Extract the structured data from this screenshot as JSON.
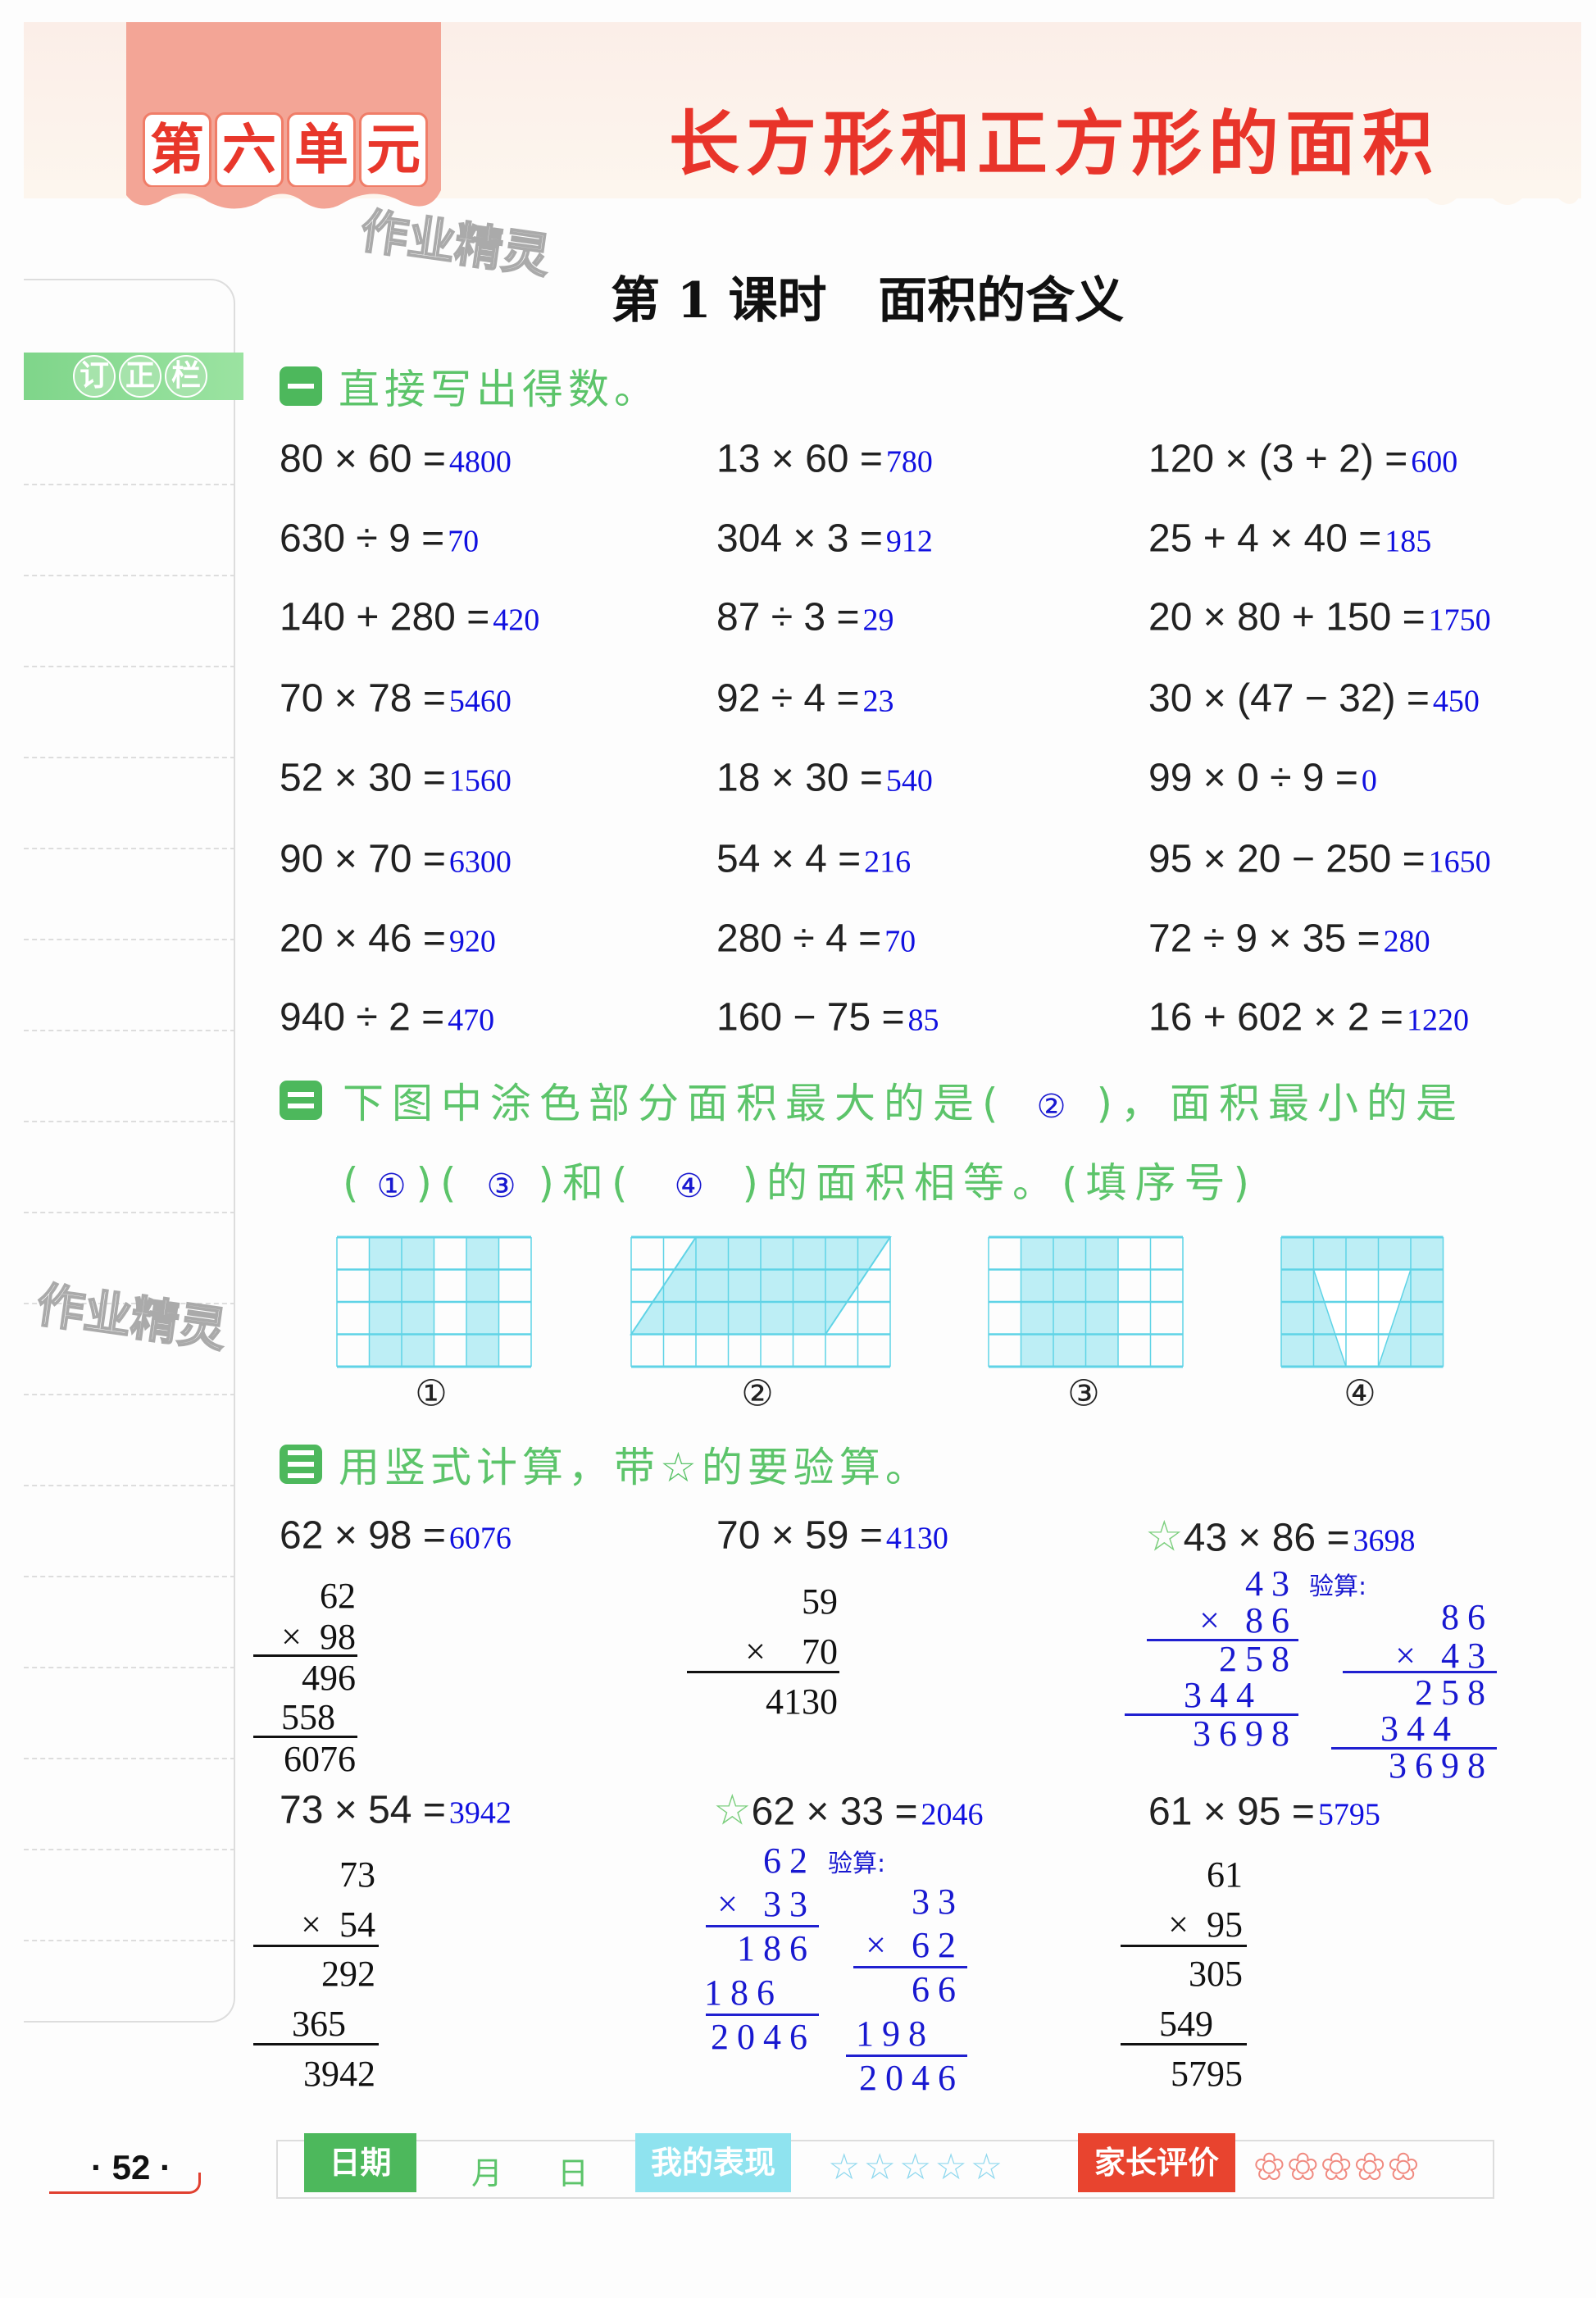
{
  "header": {
    "unit_chars": [
      "第",
      "六",
      "单",
      "元"
    ],
    "chapter_title": "长方形和正方形的面积",
    "lesson_title": "第 1 课时   面积的含义",
    "watermark": "作业精灵"
  },
  "sidebar": {
    "label_chars": [
      "订",
      "正",
      "栏"
    ]
  },
  "section1": {
    "number": "一",
    "title": "直接写出得数。",
    "columns": [
      [
        {
          "q": "80 × 60 =",
          "a": "4800"
        },
        {
          "q": "630 ÷ 9 =",
          "a": "70"
        },
        {
          "q": "140 + 280 =",
          "a": "420"
        },
        {
          "q": "70 × 78 =",
          "a": "5460"
        },
        {
          "q": "52 × 30 =",
          "a": "1560"
        },
        {
          "q": "90 × 70 =",
          "a": "6300"
        },
        {
          "q": "20 × 46 =",
          "a": "920"
        },
        {
          "q": "940 ÷ 2 =",
          "a": "470"
        }
      ],
      [
        {
          "q": "13 × 60 =",
          "a": "780"
        },
        {
          "q": "304 × 3 =",
          "a": "912"
        },
        {
          "q": "87 ÷ 3 =",
          "a": "29"
        },
        {
          "q": "92 ÷ 4 =",
          "a": "23"
        },
        {
          "q": "18 × 30 =",
          "a": "540"
        },
        {
          "q": "54 × 4 =",
          "a": "216"
        },
        {
          "q": "280 ÷ 4 =",
          "a": "70"
        },
        {
          "q": "160 − 75 =",
          "a": "85"
        }
      ],
      [
        {
          "q": "120 × (3 + 2) =",
          "a": "600"
        },
        {
          "q": "25 + 4 × 40 =",
          "a": "185"
        },
        {
          "q": "20 × 80 + 150 =",
          "a": "1750"
        },
        {
          "q": "30 × (47 − 32) =",
          "a": "450"
        },
        {
          "q": "99 × 0 ÷ 9 =",
          "a": "0"
        },
        {
          "q": "95 × 20 − 250 =",
          "a": "1650"
        },
        {
          "q": "72 ÷ 9 × 35 =",
          "a": "280"
        },
        {
          "q": "16 + 602 × 2 =",
          "a": "1220"
        }
      ]
    ]
  },
  "section2": {
    "number": "二",
    "line1_a": "下图中涂色部分面积最大的是(",
    "answer_largest": "②",
    "line1_b": ")，面积最小的是",
    "open1": "(",
    "answer_smallest": "①",
    "mid1": ")(",
    "answer_equal_1": "③",
    "mid2": ")和(",
    "answer_equal_2": "④",
    "line2_end": ")的面积相等。(填序号)",
    "figure_labels": [
      "①",
      "②",
      "③",
      "④"
    ],
    "shade_color": "#bdeef5",
    "grid_color": "#5fd3e6"
  },
  "section3": {
    "number": "三",
    "title": "用竖式计算，带☆的要验算。",
    "star": "☆",
    "check_label": "验算:",
    "problems": [
      {
        "q": "62 × 98 =",
        "a": "6076",
        "lines": [
          "62",
          "×  98",
          "496",
          "558",
          "6076"
        ]
      },
      {
        "q": "70 × 59 =",
        "a": "4130",
        "lines": [
          "59",
          "×    70",
          "4130"
        ]
      },
      {
        "q": "43 × 86 =",
        "a": "3698",
        "lines": [
          "43",
          "× 86",
          "258",
          "344",
          "3698"
        ],
        "check": [
          "86",
          "× 43",
          "258",
          "344",
          "3698"
        ]
      },
      {
        "q": "73 × 54 =",
        "a": "3942",
        "lines": [
          "73",
          "×  54",
          "292",
          "365",
          "3942"
        ]
      },
      {
        "q": "62 × 33 =",
        "a": "2046",
        "lines": [
          "62",
          "× 33",
          "186",
          "186",
          "2046"
        ],
        "check": [
          "33",
          "× 62",
          "66",
          "198",
          "2046"
        ]
      },
      {
        "q": "61 × 95 =",
        "a": "5795",
        "lines": [
          "61",
          "×  95",
          "305",
          "549",
          "5795"
        ]
      }
    ]
  },
  "footer": {
    "page_number": "· 52 ·",
    "date_label": "日期",
    "month": "月",
    "day": "日",
    "performance_label": "我的表现",
    "performance_stars": "☆☆☆☆☆",
    "parent_label": "家长评价",
    "parent_flowers": "✿✿✿✿✿",
    "colors": {
      "date": "#4db85c",
      "performance": "#8fe3ef",
      "parent": "#e8442f"
    }
  }
}
